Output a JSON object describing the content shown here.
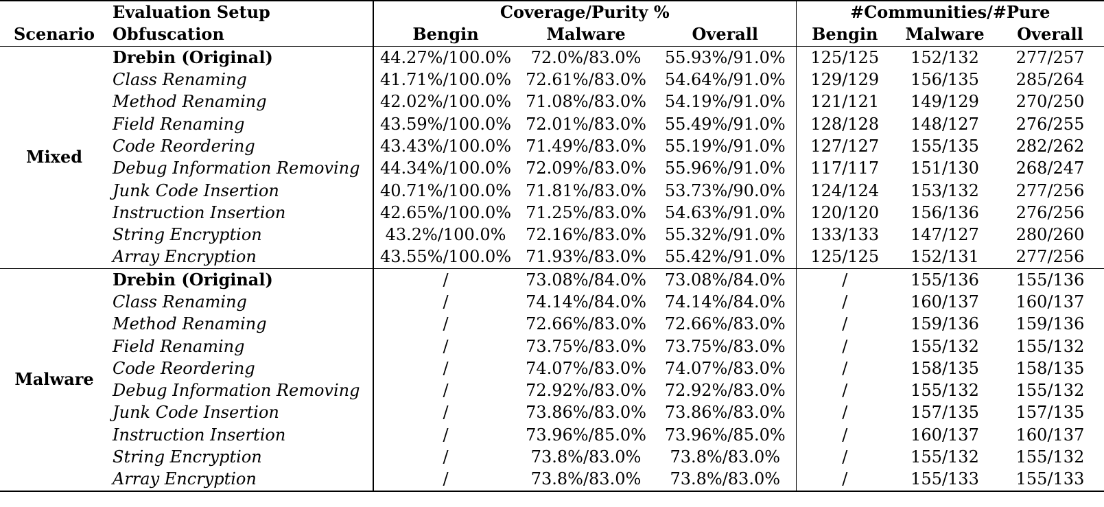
{
  "header": {
    "group1": "Evaluation Setup",
    "group2": "Coverage/Purity %",
    "group3": "#Communities/#Pure",
    "col_scenario": "Scenario",
    "col_obfuscation": "Obfuscation",
    "cp_bengin": "Bengin",
    "cp_malware": "Malware",
    "cp_overall": "Overall",
    "cm_bengin": "Bengin",
    "cm_malware": "Malware",
    "cm_overall": "Overall"
  },
  "sections": [
    {
      "scenario": "Mixed",
      "rows": [
        {
          "obf": "Drebin (Original)",
          "bold": true,
          "cp_b": "44.27%/100.0%",
          "cp_m": "72.0%/83.0%",
          "cp_o": "55.93%/91.0%",
          "c_b": "125/125",
          "c_m": "152/132",
          "c_o": "277/257"
        },
        {
          "obf": "Class Renaming",
          "cp_b": "41.71%/100.0%",
          "cp_m": "72.61%/83.0%",
          "cp_o": "54.64%/91.0%",
          "c_b": "129/129",
          "c_m": "156/135",
          "c_o": "285/264"
        },
        {
          "obf": "Method Renaming",
          "cp_b": "42.02%/100.0%",
          "cp_m": "71.08%/83.0%",
          "cp_o": "54.19%/91.0%",
          "c_b": "121/121",
          "c_m": "149/129",
          "c_o": "270/250"
        },
        {
          "obf": "Field Renaming",
          "cp_b": "43.59%/100.0%",
          "cp_m": "72.01%/83.0%",
          "cp_o": "55.49%/91.0%",
          "c_b": "128/128",
          "c_m": "148/127",
          "c_o": "276/255"
        },
        {
          "obf": "Code Reordering",
          "cp_b": "43.43%/100.0%",
          "cp_m": "71.49%/83.0%",
          "cp_o": "55.19%/91.0%",
          "c_b": "127/127",
          "c_m": "155/135",
          "c_o": "282/262"
        },
        {
          "obf": "Debug Information Removing",
          "cp_b": "44.34%/100.0%",
          "cp_m": "72.09%/83.0%",
          "cp_o": "55.96%/91.0%",
          "c_b": "117/117",
          "c_m": "151/130",
          "c_o": "268/247"
        },
        {
          "obf": "Junk Code Insertion",
          "cp_b": "40.71%/100.0%",
          "cp_m": "71.81%/83.0%",
          "cp_o": "53.73%/90.0%",
          "c_b": "124/124",
          "c_m": "153/132",
          "c_o": "277/256"
        },
        {
          "obf": "Instruction Insertion",
          "cp_b": "42.65%/100.0%",
          "cp_m": "71.25%/83.0%",
          "cp_o": "54.63%/91.0%",
          "c_b": "120/120",
          "c_m": "156/136",
          "c_o": "276/256"
        },
        {
          "obf": "String Encryption",
          "cp_b": "43.2%/100.0%",
          "cp_m": "72.16%/83.0%",
          "cp_o": "55.32%/91.0%",
          "c_b": "133/133",
          "c_m": "147/127",
          "c_o": "280/260"
        },
        {
          "obf": "Array Encryption",
          "cp_b": "43.55%/100.0%",
          "cp_m": "71.93%/83.0%",
          "cp_o": "55.42%/91.0%",
          "c_b": "125/125",
          "c_m": "152/131",
          "c_o": "277/256"
        }
      ]
    },
    {
      "scenario": "Malware",
      "rows": [
        {
          "obf": "Drebin (Original)",
          "bold": true,
          "cp_b": "/",
          "cp_m": "73.08%/84.0%",
          "cp_o": "73.08%/84.0%",
          "c_b": "/",
          "c_m": "155/136",
          "c_o": "155/136"
        },
        {
          "obf": "Class Renaming",
          "cp_b": "/",
          "cp_m": "74.14%/84.0%",
          "cp_o": "74.14%/84.0%",
          "c_b": "/",
          "c_m": "160/137",
          "c_o": "160/137"
        },
        {
          "obf": "Method Renaming",
          "cp_b": "/",
          "cp_m": "72.66%/83.0%",
          "cp_o": "72.66%/83.0%",
          "c_b": "/",
          "c_m": "159/136",
          "c_o": "159/136"
        },
        {
          "obf": "Field Renaming",
          "cp_b": "/",
          "cp_m": "73.75%/83.0%",
          "cp_o": "73.75%/83.0%",
          "c_b": "/",
          "c_m": "155/132",
          "c_o": "155/132"
        },
        {
          "obf": "Code Reordering",
          "cp_b": "/",
          "cp_m": "74.07%/83.0%",
          "cp_o": "74.07%/83.0%",
          "c_b": "/",
          "c_m": "158/135",
          "c_o": "158/135"
        },
        {
          "obf": "Debug Information Removing",
          "cp_b": "/",
          "cp_m": "72.92%/83.0%",
          "cp_o": "72.92%/83.0%",
          "c_b": "/",
          "c_m": "155/132",
          "c_o": "155/132"
        },
        {
          "obf": "Junk Code Insertion",
          "cp_b": "/",
          "cp_m": "73.86%/83.0%",
          "cp_o": "73.86%/83.0%",
          "c_b": "/",
          "c_m": "157/135",
          "c_o": "157/135"
        },
        {
          "obf": "Instruction Insertion",
          "cp_b": "/",
          "cp_m": "73.96%/85.0%",
          "cp_o": "73.96%/85.0%",
          "c_b": "/",
          "c_m": "160/137",
          "c_o": "160/137"
        },
        {
          "obf": "String Encryption",
          "cp_b": "/",
          "cp_m": "73.8%/83.0%",
          "cp_o": "73.8%/83.0%",
          "c_b": "/",
          "c_m": "155/132",
          "c_o": "155/132"
        },
        {
          "obf": "Array Encryption",
          "cp_b": "/",
          "cp_m": "73.8%/83.0%",
          "cp_o": "73.8%/83.0%",
          "c_b": "/",
          "c_m": "155/133",
          "c_o": "155/133"
        }
      ]
    }
  ]
}
